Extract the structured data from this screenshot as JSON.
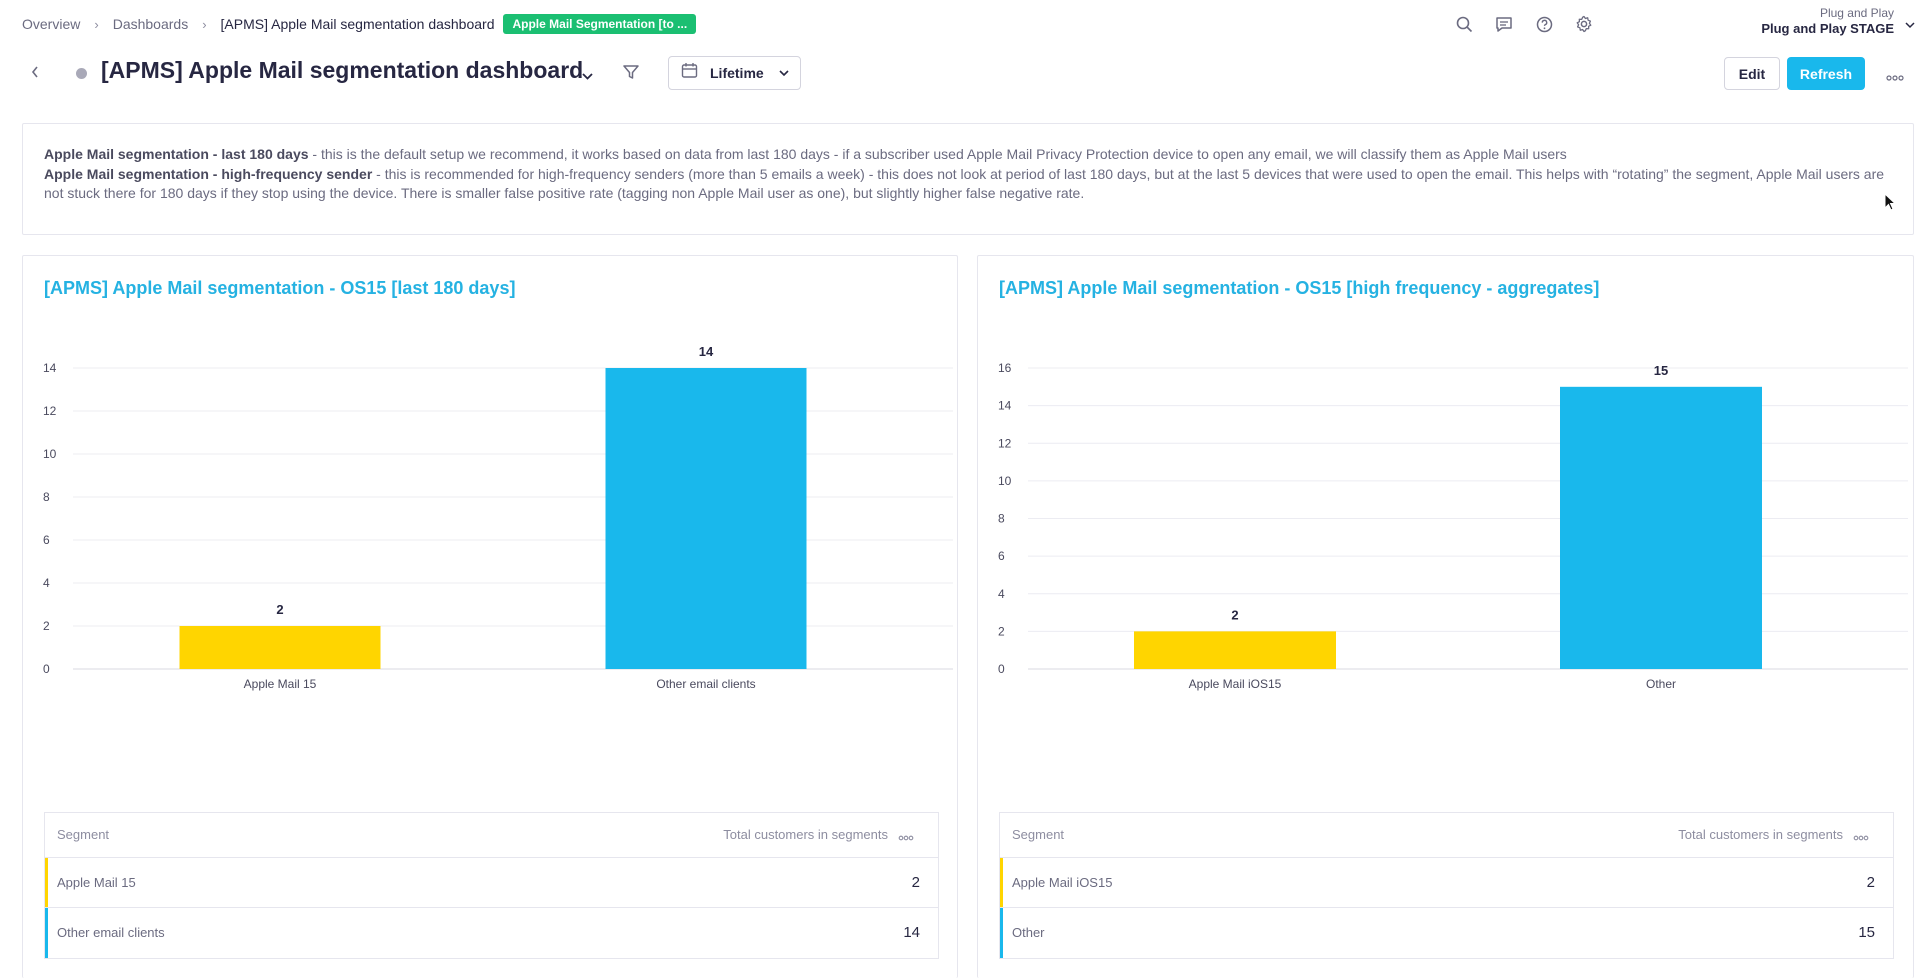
{
  "breadcrumb": {
    "items": [
      "Overview",
      "Dashboards",
      "[APMS] Apple Mail segmentation dashboard"
    ],
    "tag": "Apple Mail Segmentation [to ..."
  },
  "account": {
    "organization": "Plug and Play",
    "project": "Plug and Play STAGE"
  },
  "top_icons": [
    "search-icon",
    "chat-icon",
    "help-icon",
    "settings-icon"
  ],
  "header": {
    "title": "[APMS] Apple Mail segmentation dashboard",
    "date_range": "Lifetime",
    "edit_label": "Edit",
    "refresh_label": "Refresh"
  },
  "description": {
    "line1_bold": "Apple Mail segmentation - last 180 days",
    "line1_text": " - this is the default setup we recommend, it works based on data from last 180 days - if a subscriber used Apple Mail Privacy Protection device to open any email, we will classify them as Apple Mail users",
    "line2_bold": "Apple Mail segmentation - high-frequency sender",
    "line2_text": " - this is recommended for high-frequency senders (more than 5 emails a week) - this does not look at period of last 180 days, but at the last 5 devices that were used to open the email. This helps with “rotating” the segment, Apple Mail users are not stuck there for 180 days if they stop using the device. There is smaller false positive rate (tagging non Apple Mail user as one), but slightly higher false negative rate."
  },
  "colors": {
    "accent": "#19b8ec",
    "title_link": "#25b2e2",
    "tag": "#1bbf72",
    "series_yellow": "#ffd500",
    "series_blue": "#19b8ec"
  },
  "chart_data": [
    {
      "type": "bar",
      "title": "[APMS] Apple Mail segmentation - OS15 [last 180 days]",
      "categories": [
        "Apple Mail 15",
        "Other email clients"
      ],
      "values": [
        2,
        14
      ],
      "colors": [
        "#ffd500",
        "#19b8ec"
      ],
      "yticks": [
        0,
        2,
        4,
        6,
        8,
        10,
        12,
        14
      ],
      "ylim": [
        0,
        14
      ],
      "grid": true,
      "table": {
        "headers": [
          "Segment",
          "Total customers in segments"
        ],
        "rows": [
          {
            "segment": "Apple Mail 15",
            "value": "2"
          },
          {
            "segment": "Other email clients",
            "value": "14"
          }
        ]
      }
    },
    {
      "type": "bar",
      "title": "[APMS] Apple Mail segmentation - OS15 [high frequency - aggregates]",
      "categories": [
        "Apple Mail iOS15",
        "Other"
      ],
      "values": [
        2,
        15
      ],
      "colors": [
        "#ffd500",
        "#19b8ec"
      ],
      "yticks": [
        0,
        2,
        4,
        6,
        8,
        10,
        12,
        14,
        16
      ],
      "ylim": [
        0,
        16
      ],
      "grid": true,
      "table": {
        "headers": [
          "Segment",
          "Total customers in segments"
        ],
        "rows": [
          {
            "segment": "Apple Mail iOS15",
            "value": "2"
          },
          {
            "segment": "Other",
            "value": "15"
          }
        ]
      }
    }
  ]
}
